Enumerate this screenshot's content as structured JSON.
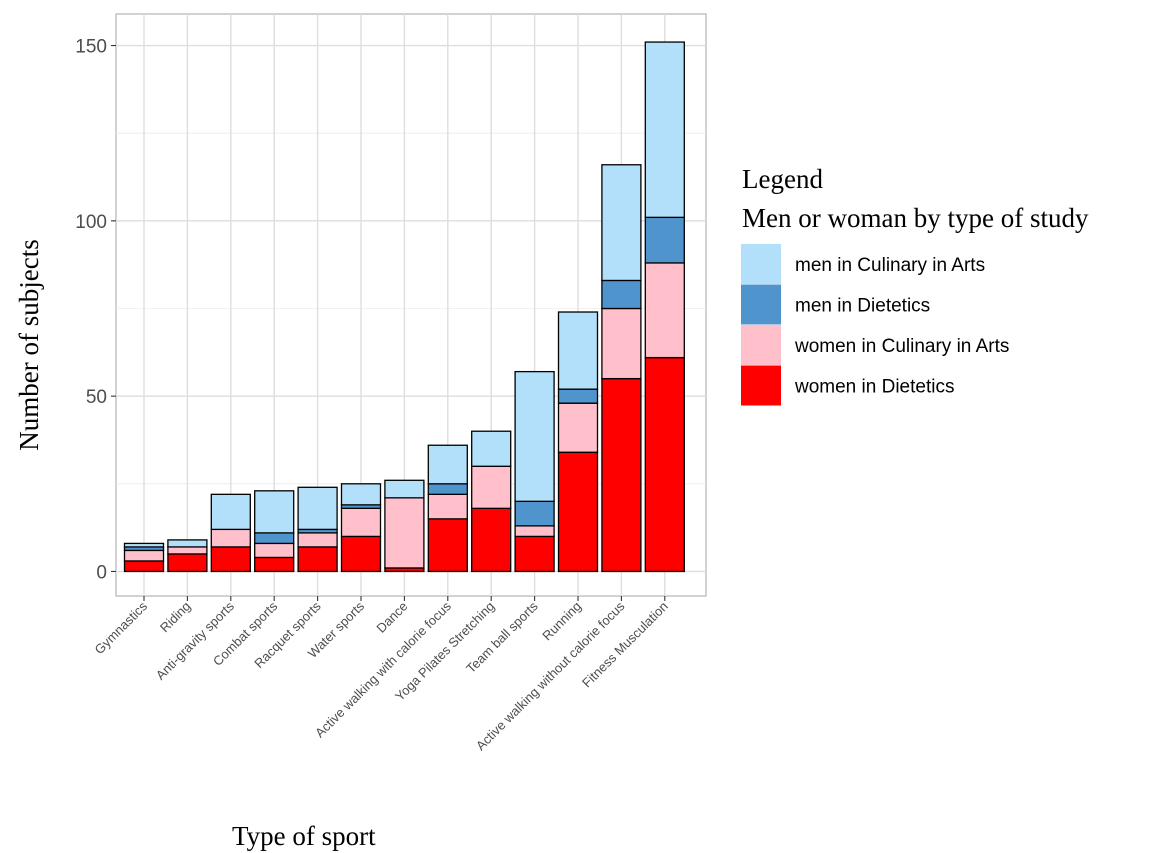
{
  "chart_data": {
    "type": "bar",
    "stacked": true,
    "xlabel": "Type of sport",
    "ylabel": "Number of subjects",
    "ylim": [
      -7,
      159
    ],
    "yticks": [
      0,
      50,
      100,
      150
    ],
    "grid": true,
    "legend_position": "right",
    "legend_title": [
      "Legend",
      "Men or woman by type of study"
    ],
    "categories": [
      "Gymnastics",
      "Riding",
      "Anti-gravity sports",
      "Combat sports",
      "Racquet sports",
      "Water sports",
      "Dance",
      "Active walking with calorie focus",
      "Yoga Pilates Stretching",
      "Team ball sports",
      "Running",
      "Active walking without calorie focus",
      "Fitness Musculation"
    ],
    "series": [
      {
        "name": "women in Dietetics",
        "color": "#ff0000",
        "values": [
          3,
          5,
          7,
          4,
          7,
          10,
          1,
          15,
          18,
          10,
          34,
          55,
          61
        ]
      },
      {
        "name": "women in Culinary in Arts",
        "color": "#ffc0cb",
        "values": [
          3,
          2,
          5,
          4,
          4,
          8,
          20,
          7,
          12,
          3,
          14,
          20,
          27
        ]
      },
      {
        "name": "men in Dietetics",
        "color": "#4f94cd",
        "values": [
          1,
          0,
          0,
          3,
          1,
          1,
          0,
          3,
          0,
          7,
          4,
          8,
          13
        ]
      },
      {
        "name": "men in Culinary in Arts",
        "color": "#b2e0fa",
        "values": [
          1,
          2,
          10,
          12,
          12,
          6,
          5,
          11,
          10,
          37,
          22,
          33,
          50
        ]
      }
    ]
  }
}
